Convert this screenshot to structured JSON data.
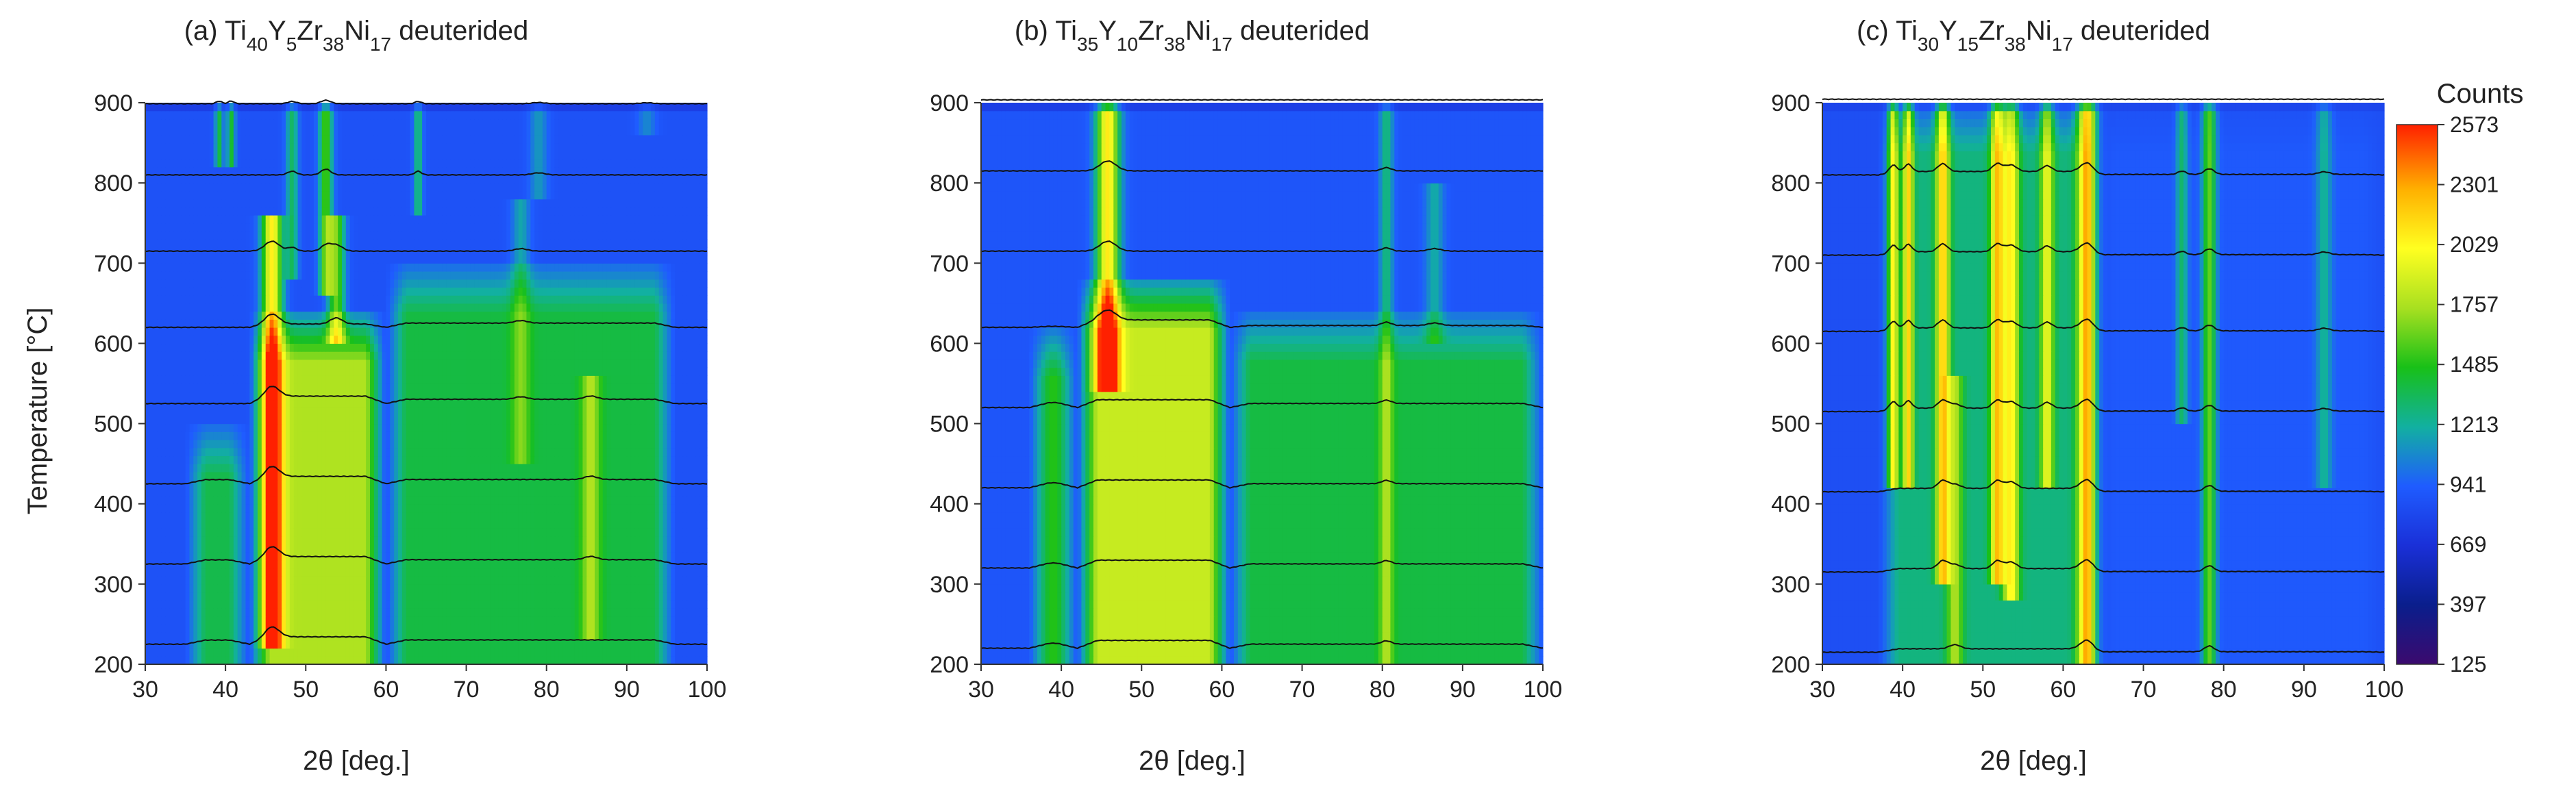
{
  "figure": {
    "colorbar": {
      "title": "Counts",
      "ticks": [
        125,
        397,
        669,
        941,
        1213,
        1485,
        1757,
        2029,
        2301,
        2573
      ],
      "range": [
        125,
        2573
      ],
      "colors": [
        "#3b0a6e",
        "#0a1e8c",
        "#1a30d8",
        "#1f5cff",
        "#12b0a0",
        "#18c018",
        "#a8e020",
        "#ffff20",
        "#ffb000",
        "#ff2000"
      ]
    }
  },
  "chart_data": [
    {
      "type": "heatmap",
      "label": "(a)",
      "title_parts": [
        {
          "t": "(a) Ti",
          "sub": false
        },
        {
          "t": "40",
          "sub": true
        },
        {
          "t": "Y",
          "sub": false
        },
        {
          "t": "5",
          "sub": true
        },
        {
          "t": "Zr",
          "sub": false
        },
        {
          "t": "38",
          "sub": true
        },
        {
          "t": "Ni",
          "sub": false
        },
        {
          "t": "17",
          "sub": true
        },
        {
          "t": " deuterided",
          "sub": false
        }
      ],
      "xlabel": "2θ [deg.]",
      "ylabel": "Temperature [°C]",
      "xlim": [
        30,
        100
      ],
      "ylim": [
        200,
        900
      ],
      "xticks": [
        30,
        40,
        50,
        60,
        70,
        80,
        90,
        100
      ],
      "yticks": [
        200,
        300,
        400,
        500,
        600,
        700,
        800,
        900
      ],
      "overlay_temperatures": [
        225,
        325,
        425,
        525,
        620,
        715,
        810,
        900
      ],
      "peaks": [
        {
          "two_theta": 39.2,
          "amp": 520,
          "w": 0.35,
          "t_min": 820,
          "t_max": 900
        },
        {
          "two_theta": 40.7,
          "amp": 560,
          "w": 0.35,
          "t_min": 820,
          "t_max": 900
        },
        {
          "two_theta": 45.8,
          "amp": 1200,
          "w": 0.9,
          "t_min": 220,
          "t_max": 760
        },
        {
          "two_theta": 48.3,
          "amp": 450,
          "w": 0.55,
          "t_min": 680,
          "t_max": 900
        },
        {
          "two_theta": 52.5,
          "amp": 700,
          "w": 0.6,
          "t_min": 660,
          "t_max": 900
        },
        {
          "two_theta": 53.8,
          "amp": 750,
          "w": 0.75,
          "t_min": 600,
          "t_max": 760
        },
        {
          "two_theta": 64.0,
          "amp": 450,
          "w": 0.4,
          "t_min": 760,
          "t_max": 900
        },
        {
          "two_theta": 76.8,
          "amp": 300,
          "w": 0.8,
          "t_min": 450,
          "t_max": 780
        },
        {
          "two_theta": 85.5,
          "amp": 400,
          "w": 0.8,
          "t_min": 230,
          "t_max": 560
        },
        {
          "two_theta": 79.0,
          "amp": 250,
          "w": 0.8,
          "t_min": 780,
          "t_max": 900
        },
        {
          "two_theta": 92.5,
          "amp": 200,
          "w": 0.8,
          "t_min": 860,
          "t_max": 900
        }
      ],
      "broad_bands": [
        {
          "from": 43,
          "to": 60,
          "amp": 900,
          "t_min": 200,
          "t_max": 640
        },
        {
          "from": 35,
          "to": 43,
          "amp": 500,
          "t_min": 200,
          "t_max": 500
        },
        {
          "from": 60,
          "to": 96,
          "amp": 520,
          "t_min": 200,
          "t_max": 700
        }
      ],
      "background_counts": 880,
      "top_counts": 760
    },
    {
      "type": "heatmap",
      "label": "(b)",
      "title_parts": [
        {
          "t": "(b) Ti",
          "sub": false
        },
        {
          "t": "35",
          "sub": true
        },
        {
          "t": "Y",
          "sub": false
        },
        {
          "t": "10",
          "sub": true
        },
        {
          "t": "Zr",
          "sub": false
        },
        {
          "t": "38",
          "sub": true
        },
        {
          "t": "Ni",
          "sub": false
        },
        {
          "t": "17",
          "sub": true
        },
        {
          "t": " deuterided",
          "sub": false
        }
      ],
      "xlabel": "2θ [deg.]",
      "ylabel": "",
      "xlim": [
        30,
        100
      ],
      "ylim": [
        200,
        900
      ],
      "xticks": [
        30,
        40,
        50,
        60,
        70,
        80,
        90,
        100
      ],
      "yticks": [
        200,
        300,
        400,
        500,
        600,
        700,
        800,
        900
      ],
      "overlay_temperatures": [
        220,
        320,
        420,
        520,
        620,
        715,
        815,
        905
      ],
      "peaks": [
        {
          "two_theta": 45.8,
          "amp": 1200,
          "w": 1.0,
          "t_min": 540,
          "t_max": 900
        },
        {
          "two_theta": 80.5,
          "amp": 400,
          "w": 0.6,
          "t_min": 200,
          "t_max": 900
        },
        {
          "two_theta": 86.5,
          "amp": 300,
          "w": 0.8,
          "t_min": 600,
          "t_max": 800
        }
      ],
      "broad_bands": [
        {
          "from": 42,
          "to": 61,
          "amp": 950,
          "t_min": 200,
          "t_max": 680
        },
        {
          "from": 36,
          "to": 42,
          "amp": 600,
          "t_min": 200,
          "t_max": 620
        },
        {
          "from": 61,
          "to": 100,
          "amp": 500,
          "t_min": 200,
          "t_max": 640
        }
      ],
      "background_counts": 900,
      "top_counts": 760
    },
    {
      "type": "heatmap",
      "label": "(c)",
      "title_parts": [
        {
          "t": "(c) Ti",
          "sub": false
        },
        {
          "t": "30",
          "sub": true
        },
        {
          "t": "Y",
          "sub": false
        },
        {
          "t": "15",
          "sub": true
        },
        {
          "t": "Zr",
          "sub": false
        },
        {
          "t": "38",
          "sub": true
        },
        {
          "t": "Ni",
          "sub": false
        },
        {
          "t": "17",
          "sub": true
        },
        {
          "t": " deuterided",
          "sub": false
        }
      ],
      "xlabel": "2θ [deg.]",
      "ylabel": "",
      "xlim": [
        30,
        100
      ],
      "ylim": [
        200,
        900
      ],
      "xticks": [
        30,
        40,
        50,
        60,
        70,
        80,
        90,
        100
      ],
      "yticks": [
        200,
        300,
        400,
        500,
        600,
        700,
        800,
        900
      ],
      "overlay_temperatures": [
        215,
        315,
        415,
        515,
        615,
        710,
        810,
        905
      ],
      "peaks": [
        {
          "two_theta": 38.8,
          "amp": 900,
          "w": 0.45,
          "t_min": 420,
          "t_max": 900
        },
        {
          "two_theta": 40.7,
          "amp": 900,
          "w": 0.45,
          "t_min": 420,
          "t_max": 900
        },
        {
          "two_theta": 45.0,
          "amp": 950,
          "w": 0.6,
          "t_min": 300,
          "t_max": 900
        },
        {
          "two_theta": 46.5,
          "amp": 500,
          "w": 0.7,
          "t_min": 200,
          "t_max": 560
        },
        {
          "two_theta": 51.8,
          "amp": 950,
          "w": 0.6,
          "t_min": 300,
          "t_max": 900
        },
        {
          "two_theta": 53.5,
          "amp": 800,
          "w": 0.7,
          "t_min": 280,
          "t_max": 900
        },
        {
          "two_theta": 58.0,
          "amp": 700,
          "w": 0.6,
          "t_min": 420,
          "t_max": 900
        },
        {
          "two_theta": 63.0,
          "amp": 1300,
          "w": 0.8,
          "t_min": 200,
          "t_max": 900
        },
        {
          "two_theta": 74.8,
          "amp": 400,
          "w": 0.5,
          "t_min": 500,
          "t_max": 900
        },
        {
          "two_theta": 78.2,
          "amp": 700,
          "w": 0.6,
          "t_min": 200,
          "t_max": 900
        },
        {
          "two_theta": 92.5,
          "amp": 320,
          "w": 0.7,
          "t_min": 420,
          "t_max": 900
        }
      ],
      "broad_bands": [
        {
          "from": 37,
          "to": 64,
          "amp": 420,
          "t_min": 200,
          "t_max": 900
        },
        {
          "from": 64,
          "to": 100,
          "amp": 60,
          "t_min": 200,
          "t_max": 900
        }
      ],
      "background_counts": 860,
      "top_counts": 800
    }
  ]
}
